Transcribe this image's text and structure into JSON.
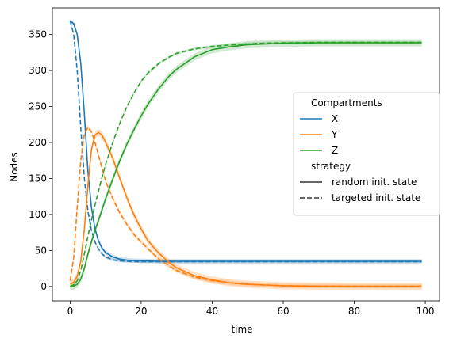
{
  "chart_data": {
    "type": "line",
    "xlabel": "time",
    "ylabel": "Nodes",
    "xlim": [
      -5,
      104
    ],
    "ylim": [
      -20,
      387
    ],
    "xticks": [
      0,
      20,
      40,
      60,
      80,
      100
    ],
    "yticks": [
      0,
      50,
      100,
      150,
      200,
      250,
      300,
      350
    ],
    "grid": false,
    "legend": {
      "placement": "right",
      "hue_title": "Compartments",
      "style_title": "strategy",
      "hue_entries": [
        "X",
        "Y",
        "Z"
      ],
      "style_entries": [
        {
          "label": "random init. state",
          "dash": "solid"
        },
        {
          "label": "targeted init. state",
          "dash": "dashed"
        }
      ]
    },
    "series": [
      {
        "name": "X",
        "strategy": "random init. state",
        "color": "#1f77b4",
        "dash": "solid",
        "band": 3,
        "x": [
          0,
          1,
          2,
          3,
          4,
          5,
          6,
          7,
          8,
          9,
          10,
          12,
          14,
          16,
          18,
          20,
          25,
          30,
          40,
          50,
          60,
          70,
          80,
          90,
          99
        ],
        "y": [
          369,
          365,
          350,
          310,
          240,
          160,
          110,
          80,
          63,
          53,
          47,
          41,
          38,
          36.5,
          36,
          35.5,
          35,
          35,
          35,
          35,
          35,
          35,
          35,
          35,
          35
        ]
      },
      {
        "name": "X",
        "strategy": "targeted init. state",
        "color": "#1f77b4",
        "dash": "dashed",
        "band": 2,
        "x": [
          0,
          1,
          2,
          3,
          4,
          5,
          6,
          7,
          8,
          9,
          10,
          12,
          14,
          16,
          18,
          20,
          25,
          30,
          40,
          50,
          60,
          70,
          80,
          90,
          99
        ],
        "y": [
          369,
          350,
          300,
          220,
          150,
          105,
          78,
          62,
          52,
          45,
          41,
          37,
          35.5,
          35,
          34.8,
          34.5,
          34.5,
          34.5,
          34.5,
          34.5,
          34.5,
          34.5,
          34.5,
          34.5,
          34.5
        ]
      },
      {
        "name": "Y",
        "strategy": "random init. state",
        "color": "#ff7f0e",
        "dash": "solid",
        "band": 5,
        "x": [
          0,
          1,
          2,
          3,
          4,
          5,
          6,
          7,
          8,
          9,
          10,
          12,
          14,
          16,
          18,
          20,
          22,
          25,
          28,
          30,
          35,
          40,
          45,
          50,
          55,
          60,
          70,
          80,
          90,
          99
        ],
        "y": [
          3,
          6,
          14,
          35,
          80,
          140,
          190,
          210,
          214,
          210,
          200,
          178,
          150,
          123,
          99,
          80,
          63,
          46,
          33,
          26,
          15,
          9,
          5,
          3,
          2,
          1,
          0.5,
          0.3,
          0.2,
          0.2
        ]
      },
      {
        "name": "Y",
        "strategy": "targeted init. state",
        "color": "#ff7f0e",
        "dash": "dashed",
        "band": 3,
        "x": [
          0,
          1,
          2,
          3,
          4,
          5,
          6,
          7,
          8,
          9,
          10,
          12,
          14,
          16,
          18,
          20,
          22,
          25,
          28,
          30,
          35,
          40,
          45,
          50,
          55,
          60,
          70,
          80,
          90,
          99
        ],
        "y": [
          8,
          40,
          110,
          175,
          212,
          221,
          215,
          200,
          182,
          164,
          146,
          122,
          102,
          86,
          72,
          62,
          52,
          38,
          28,
          22,
          13,
          8,
          5,
          3,
          2,
          1,
          0.5,
          0.3,
          0.2,
          0.2
        ]
      },
      {
        "name": "Z",
        "strategy": "random init. state",
        "color": "#2ca02c",
        "dash": "solid",
        "band": 5,
        "x": [
          0,
          1,
          2,
          3,
          4,
          5,
          6,
          7,
          8,
          9,
          10,
          12,
          14,
          16,
          18,
          20,
          22,
          25,
          28,
          30,
          35,
          40,
          45,
          50,
          55,
          60,
          70,
          80,
          90,
          99
        ],
        "y": [
          0,
          0.5,
          3,
          10,
          25,
          45,
          62,
          78,
          92,
          107,
          122,
          149,
          175,
          198,
          218,
          237,
          254,
          275,
          293,
          302,
          319,
          329,
          333,
          336,
          337,
          338,
          338.5,
          338.5,
          338.5,
          338.5
        ]
      },
      {
        "name": "Z",
        "strategy": "targeted init. state",
        "color": "#2ca02c",
        "dash": "dashed",
        "band": 2,
        "x": [
          0,
          1,
          2,
          3,
          4,
          5,
          6,
          7,
          8,
          9,
          10,
          12,
          14,
          16,
          18,
          20,
          22,
          25,
          28,
          30,
          35,
          40,
          45,
          50,
          55,
          60,
          70,
          80,
          90,
          99
        ],
        "y": [
          0,
          2,
          8,
          22,
          45,
          70,
          92,
          113,
          133,
          152,
          170,
          200,
          227,
          250,
          269,
          285,
          297,
          310,
          319,
          324,
          330,
          333.5,
          335.5,
          337,
          338,
          338.5,
          339,
          339,
          339,
          339
        ]
      }
    ]
  }
}
